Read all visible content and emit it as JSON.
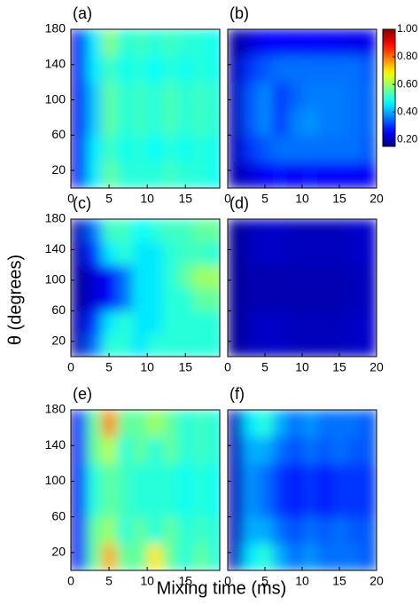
{
  "figure": {
    "xlabel": "Mixing time (ms)",
    "ylabel": "θ (degrees)"
  },
  "chart_data": [
    {
      "type": "heatmap",
      "label": "(a)",
      "colormap": "jet",
      "zlim": [
        0.15,
        1
      ],
      "xlim": [
        0,
        19.5
      ],
      "ylim": [
        0,
        180
      ],
      "xticks": [
        0,
        5,
        10,
        15
      ],
      "yticks": [
        20,
        60,
        100,
        140,
        180
      ],
      "x": [
        1,
        3,
        5,
        7,
        9,
        11,
        13,
        15,
        17,
        19
      ],
      "y": [
        15,
        45,
        75,
        105,
        135,
        165
      ],
      "z": [
        [
          0.25,
          0.45,
          0.55,
          0.5,
          0.5,
          0.5,
          0.52,
          0.5,
          0.5,
          0.48
        ],
        [
          0.25,
          0.45,
          0.52,
          0.48,
          0.5,
          0.47,
          0.5,
          0.48,
          0.5,
          0.48
        ],
        [
          0.25,
          0.42,
          0.55,
          0.5,
          0.52,
          0.5,
          0.53,
          0.5,
          0.52,
          0.5
        ],
        [
          0.25,
          0.42,
          0.55,
          0.5,
          0.52,
          0.5,
          0.53,
          0.5,
          0.52,
          0.5
        ],
        [
          0.25,
          0.45,
          0.52,
          0.48,
          0.5,
          0.47,
          0.5,
          0.48,
          0.5,
          0.48
        ],
        [
          0.25,
          0.45,
          0.58,
          0.5,
          0.52,
          0.5,
          0.52,
          0.5,
          0.5,
          0.48
        ]
      ]
    },
    {
      "type": "heatmap",
      "label": "(b)",
      "colormap": "jet",
      "zlim": [
        0.15,
        1
      ],
      "xlim": [
        0,
        20
      ],
      "ylim": [
        0,
        180
      ],
      "xticks": [
        0,
        5,
        10,
        15,
        20
      ],
      "yticks": [
        20,
        60,
        100,
        140,
        180
      ],
      "x": [
        1,
        3,
        5,
        7,
        9,
        11,
        13,
        15,
        17,
        19
      ],
      "y": [
        15,
        45,
        75,
        105,
        135,
        165
      ],
      "z": [
        [
          0.2,
          0.22,
          0.25,
          0.27,
          0.25,
          0.27,
          0.25,
          0.26,
          0.25,
          0.25
        ],
        [
          0.2,
          0.3,
          0.33,
          0.35,
          0.35,
          0.35,
          0.35,
          0.35,
          0.35,
          0.33
        ],
        [
          0.2,
          0.33,
          0.37,
          0.3,
          0.36,
          0.38,
          0.36,
          0.36,
          0.35,
          0.34
        ],
        [
          0.2,
          0.33,
          0.37,
          0.3,
          0.34,
          0.36,
          0.36,
          0.36,
          0.35,
          0.34
        ],
        [
          0.2,
          0.3,
          0.33,
          0.35,
          0.35,
          0.35,
          0.35,
          0.35,
          0.35,
          0.33
        ],
        [
          0.18,
          0.22,
          0.25,
          0.26,
          0.25,
          0.26,
          0.25,
          0.25,
          0.24,
          0.24
        ]
      ],
      "colorbar": {
        "ticks": [
          {
            "value": 1,
            "label": "1.00"
          },
          {
            "value": 0.8,
            "label": "0.80"
          },
          {
            "value": 0.6,
            "label": "0.60"
          },
          {
            "value": 0.4,
            "label": "0.40"
          },
          {
            "value": 0.2,
            "label": "0.20"
          }
        ]
      }
    },
    {
      "type": "heatmap",
      "label": "(c)",
      "colormap": "jet",
      "zlim": [
        0.15,
        1
      ],
      "xlim": [
        0,
        19.5
      ],
      "ylim": [
        0,
        180
      ],
      "xticks": [
        0,
        5,
        10,
        15
      ],
      "yticks": [
        20,
        60,
        100,
        140,
        180
      ],
      "x": [
        1,
        3,
        5,
        7,
        9,
        11,
        13,
        15,
        17,
        19
      ],
      "y": [
        15,
        45,
        75,
        105,
        135,
        165
      ],
      "z": [
        [
          0.2,
          0.35,
          0.5,
          0.5,
          0.45,
          0.5,
          0.5,
          0.5,
          0.5,
          0.5
        ],
        [
          0.2,
          0.3,
          0.45,
          0.5,
          0.45,
          0.45,
          0.5,
          0.5,
          0.5,
          0.5
        ],
        [
          0.18,
          0.22,
          0.25,
          0.35,
          0.45,
          0.45,
          0.5,
          0.5,
          0.55,
          0.55
        ],
        [
          0.18,
          0.22,
          0.25,
          0.35,
          0.45,
          0.45,
          0.5,
          0.55,
          0.6,
          0.6
        ],
        [
          0.2,
          0.3,
          0.45,
          0.5,
          0.45,
          0.45,
          0.5,
          0.52,
          0.52,
          0.5
        ],
        [
          0.2,
          0.35,
          0.52,
          0.52,
          0.47,
          0.5,
          0.52,
          0.52,
          0.55,
          0.55
        ]
      ]
    },
    {
      "type": "heatmap",
      "label": "(d)",
      "colormap": "jet",
      "zlim": [
        0.15,
        1
      ],
      "xlim": [
        0,
        20
      ],
      "ylim": [
        0,
        180
      ],
      "xticks": [
        0,
        5,
        10,
        15,
        20
      ],
      "yticks": [
        20,
        60,
        100,
        140,
        180
      ],
      "x": [
        1,
        3,
        5,
        7,
        9,
        11,
        13,
        15,
        17,
        19
      ],
      "y": [
        15,
        45,
        75,
        105,
        135,
        165
      ],
      "z": [
        [
          0.17,
          0.2,
          0.21,
          0.21,
          0.2,
          0.2,
          0.2,
          0.2,
          0.21,
          0.21
        ],
        [
          0.17,
          0.2,
          0.21,
          0.21,
          0.2,
          0.2,
          0.2,
          0.2,
          0.21,
          0.21
        ],
        [
          0.17,
          0.19,
          0.19,
          0.19,
          0.19,
          0.19,
          0.19,
          0.19,
          0.2,
          0.2
        ],
        [
          0.17,
          0.19,
          0.19,
          0.19,
          0.19,
          0.19,
          0.19,
          0.19,
          0.2,
          0.2
        ],
        [
          0.17,
          0.2,
          0.21,
          0.21,
          0.2,
          0.2,
          0.2,
          0.2,
          0.21,
          0.21
        ],
        [
          0.17,
          0.2,
          0.21,
          0.21,
          0.2,
          0.2,
          0.2,
          0.2,
          0.21,
          0.21
        ]
      ]
    },
    {
      "type": "heatmap",
      "label": "(e)",
      "colormap": "jet",
      "zlim": [
        0.15,
        1
      ],
      "xlim": [
        0,
        19.5
      ],
      "ylim": [
        0,
        180
      ],
      "xticks": [
        0,
        5,
        10,
        15
      ],
      "yticks": [
        20,
        60,
        100,
        140,
        180
      ],
      "x": [
        1,
        3,
        5,
        7,
        9,
        11,
        13,
        15,
        17,
        19
      ],
      "y": [
        15,
        45,
        75,
        105,
        135,
        165
      ],
      "z": [
        [
          0.25,
          0.55,
          0.75,
          0.55,
          0.55,
          0.7,
          0.55,
          0.5,
          0.55,
          0.5
        ],
        [
          0.25,
          0.55,
          0.6,
          0.5,
          0.55,
          0.5,
          0.55,
          0.5,
          0.52,
          0.5
        ],
        [
          0.25,
          0.5,
          0.55,
          0.52,
          0.5,
          0.5,
          0.5,
          0.48,
          0.5,
          0.48
        ],
        [
          0.25,
          0.5,
          0.55,
          0.52,
          0.5,
          0.5,
          0.5,
          0.48,
          0.5,
          0.48
        ],
        [
          0.25,
          0.55,
          0.62,
          0.5,
          0.55,
          0.5,
          0.55,
          0.5,
          0.52,
          0.5
        ],
        [
          0.25,
          0.55,
          0.78,
          0.55,
          0.55,
          0.6,
          0.55,
          0.5,
          0.52,
          0.5
        ]
      ]
    },
    {
      "type": "heatmap",
      "label": "(f)",
      "colormap": "jet",
      "zlim": [
        0.15,
        1
      ],
      "xlim": [
        0,
        20
      ],
      "ylim": [
        0,
        180
      ],
      "xticks": [
        0,
        5,
        10,
        15,
        20
      ],
      "yticks": [
        20,
        60,
        100,
        140,
        180
      ],
      "x": [
        1,
        3,
        5,
        7,
        9,
        11,
        13,
        15,
        17,
        19
      ],
      "y": [
        15,
        45,
        75,
        105,
        135,
        165
      ],
      "z": [
        [
          0.2,
          0.45,
          0.5,
          0.4,
          0.35,
          0.38,
          0.35,
          0.35,
          0.35,
          0.33
        ],
        [
          0.2,
          0.4,
          0.4,
          0.35,
          0.32,
          0.35,
          0.33,
          0.35,
          0.33,
          0.33
        ],
        [
          0.2,
          0.38,
          0.35,
          0.3,
          0.28,
          0.3,
          0.28,
          0.3,
          0.3,
          0.3
        ],
        [
          0.2,
          0.38,
          0.35,
          0.3,
          0.28,
          0.3,
          0.28,
          0.3,
          0.3,
          0.3
        ],
        [
          0.2,
          0.4,
          0.4,
          0.35,
          0.32,
          0.35,
          0.33,
          0.35,
          0.33,
          0.33
        ],
        [
          0.2,
          0.45,
          0.5,
          0.4,
          0.35,
          0.38,
          0.35,
          0.35,
          0.35,
          0.33
        ]
      ]
    }
  ]
}
